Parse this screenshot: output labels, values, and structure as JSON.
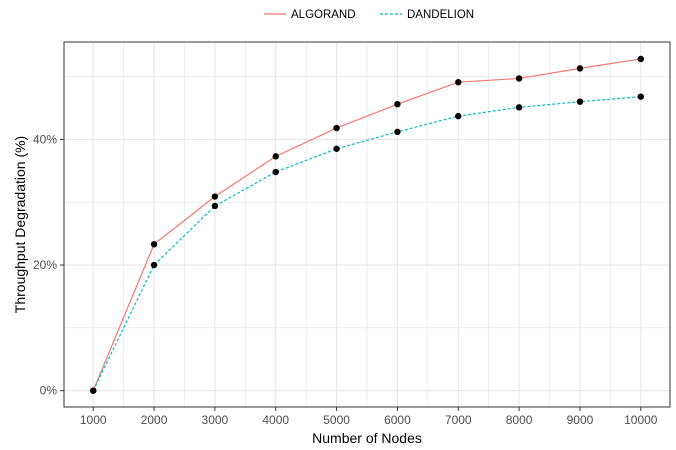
{
  "chart_data": {
    "type": "line",
    "title": "",
    "xlabel": "Number of Nodes",
    "ylabel": "Throughput Degradation (%)",
    "x": [
      1000,
      2000,
      3000,
      4000,
      5000,
      6000,
      7000,
      8000,
      9000,
      10000
    ],
    "x_tick_labels": [
      "1000",
      "2000",
      "3000",
      "4000",
      "5000",
      "6000",
      "7000",
      "8000",
      "9000",
      "10000"
    ],
    "y_ticks": [
      0,
      20,
      40
    ],
    "y_tick_labels": [
      "0%",
      "20%",
      "40%"
    ],
    "xlim": [
      520,
      10480
    ],
    "ylim": [
      -2.6,
      55.5
    ],
    "grid": true,
    "legend_position": "top",
    "colors": {
      "ALGORAND": "#F8766D",
      "DANDELION": "#00BFC4",
      "points": "#000000",
      "grid": "#e5e5e5",
      "panel_border": "#333333"
    },
    "series": [
      {
        "name": "ALGORAND",
        "line_style": "solid",
        "values": [
          0.0,
          23.3,
          30.9,
          37.3,
          41.8,
          45.6,
          49.1,
          49.7,
          51.3,
          52.8
        ]
      },
      {
        "name": "DANDELION",
        "line_style": "dashed",
        "values": [
          0.0,
          20.0,
          29.4,
          34.8,
          38.5,
          41.2,
          43.7,
          45.1,
          46.0,
          46.8
        ]
      }
    ]
  }
}
